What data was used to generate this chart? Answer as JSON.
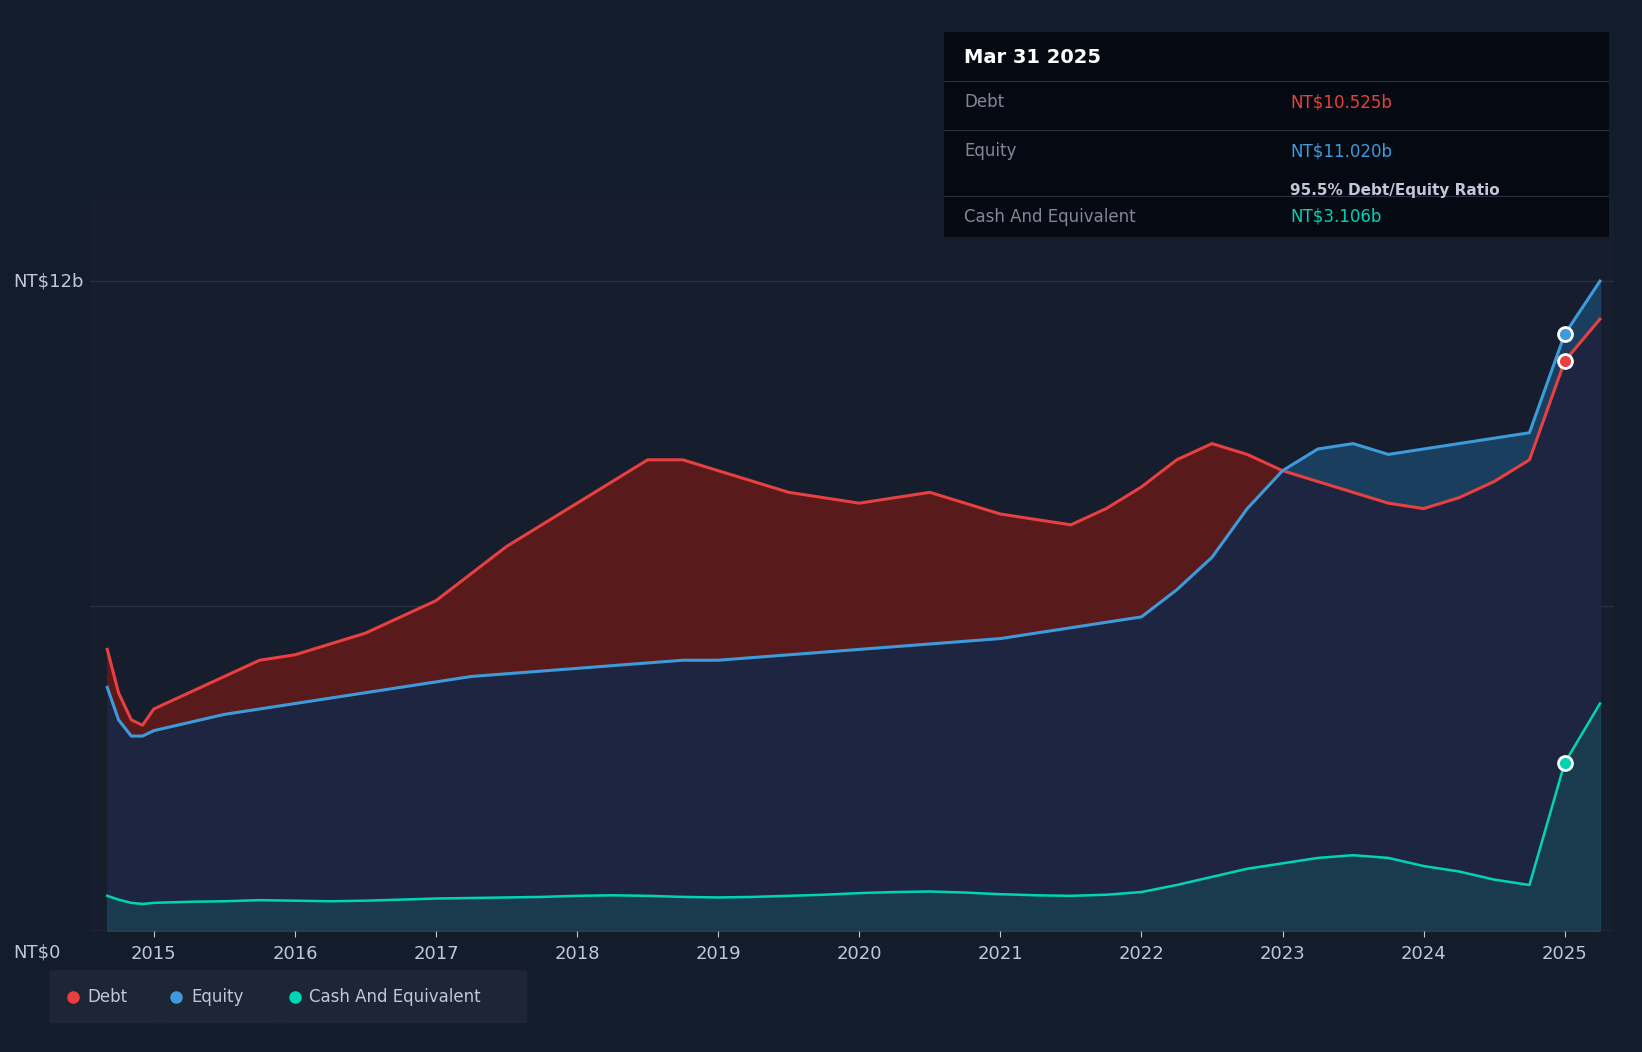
{
  "bg_color": "#131c2b",
  "plot_bg_color": "#161d2d",
  "grid_color": "#2a3347",
  "debt_color": "#e84040",
  "equity_color": "#3d9bdc",
  "cash_color": "#00d4b4",
  "tooltip_date": "Mar 31 2025",
  "tooltip_debt_label": "Debt",
  "tooltip_debt_value": "NT$10.525b",
  "tooltip_equity_label": "Equity",
  "tooltip_equity_value": "NT$11.020b",
  "tooltip_ratio": "95.5% Debt/Equity Ratio",
  "tooltip_cash_label": "Cash And Equivalent",
  "tooltip_cash_value": "NT$3.106b",
  "ylabel_top": "NT$12b",
  "ylabel_bottom": "NT$0",
  "ylim": [
    0,
    13.5
  ],
  "ytick_12b": 12,
  "ytick_6b": 6,
  "xlim_start": 2014.55,
  "xlim_end": 2025.35,
  "xtick_labels": [
    "2015",
    "2016",
    "2017",
    "2018",
    "2019",
    "2020",
    "2021",
    "2022",
    "2023",
    "2024",
    "2025"
  ],
  "xtick_positions": [
    2015,
    2016,
    2017,
    2018,
    2019,
    2020,
    2021,
    2022,
    2023,
    2024,
    2025
  ],
  "legend_items": [
    "Debt",
    "Equity",
    "Cash And Equivalent"
  ],
  "legend_colors": [
    "#e84040",
    "#3d9bdc",
    "#00d4b4"
  ],
  "debt_data_x": [
    2014.67,
    2014.75,
    2014.84,
    2014.92,
    2015.0,
    2015.25,
    2015.5,
    2015.75,
    2016.0,
    2016.25,
    2016.5,
    2016.75,
    2017.0,
    2017.25,
    2017.5,
    2017.75,
    2018.0,
    2018.25,
    2018.5,
    2018.75,
    2019.0,
    2019.25,
    2019.5,
    2019.75,
    2020.0,
    2020.25,
    2020.5,
    2020.75,
    2021.0,
    2021.25,
    2021.5,
    2021.75,
    2022.0,
    2022.25,
    2022.5,
    2022.75,
    2023.0,
    2023.25,
    2023.5,
    2023.75,
    2024.0,
    2024.25,
    2024.5,
    2024.75,
    2025.0,
    2025.25
  ],
  "debt_data_y": [
    5.2,
    4.4,
    3.9,
    3.8,
    4.1,
    4.4,
    4.7,
    5.0,
    5.1,
    5.3,
    5.5,
    5.8,
    6.1,
    6.6,
    7.1,
    7.5,
    7.9,
    8.3,
    8.7,
    8.7,
    8.5,
    8.3,
    8.1,
    8.0,
    7.9,
    8.0,
    8.1,
    7.9,
    7.7,
    7.6,
    7.5,
    7.8,
    8.2,
    8.7,
    9.0,
    8.8,
    8.5,
    8.3,
    8.1,
    7.9,
    7.8,
    8.0,
    8.3,
    8.7,
    10.525,
    11.3
  ],
  "equity_data_x": [
    2014.67,
    2014.75,
    2014.84,
    2014.92,
    2015.0,
    2015.25,
    2015.5,
    2015.75,
    2016.0,
    2016.25,
    2016.5,
    2016.75,
    2017.0,
    2017.25,
    2017.5,
    2017.75,
    2018.0,
    2018.25,
    2018.5,
    2018.75,
    2019.0,
    2019.25,
    2019.5,
    2019.75,
    2020.0,
    2020.25,
    2020.5,
    2020.75,
    2021.0,
    2021.25,
    2021.5,
    2021.75,
    2022.0,
    2022.25,
    2022.5,
    2022.75,
    2023.0,
    2023.25,
    2023.5,
    2023.75,
    2024.0,
    2024.25,
    2024.5,
    2024.75,
    2025.0,
    2025.25
  ],
  "equity_data_y": [
    4.5,
    3.9,
    3.6,
    3.6,
    3.7,
    3.85,
    4.0,
    4.1,
    4.2,
    4.3,
    4.4,
    4.5,
    4.6,
    4.7,
    4.75,
    4.8,
    4.85,
    4.9,
    4.95,
    5.0,
    5.0,
    5.05,
    5.1,
    5.15,
    5.2,
    5.25,
    5.3,
    5.35,
    5.4,
    5.5,
    5.6,
    5.7,
    5.8,
    6.3,
    6.9,
    7.8,
    8.5,
    8.9,
    9.0,
    8.8,
    8.9,
    9.0,
    9.1,
    9.2,
    11.02,
    12.0
  ],
  "cash_data_x": [
    2014.67,
    2014.75,
    2014.84,
    2014.92,
    2015.0,
    2015.25,
    2015.5,
    2015.75,
    2016.0,
    2016.25,
    2016.5,
    2016.75,
    2017.0,
    2017.25,
    2017.5,
    2017.75,
    2018.0,
    2018.25,
    2018.5,
    2018.75,
    2019.0,
    2019.25,
    2019.5,
    2019.75,
    2020.0,
    2020.25,
    2020.5,
    2020.75,
    2021.0,
    2021.25,
    2021.5,
    2021.75,
    2022.0,
    2022.25,
    2022.5,
    2022.75,
    2023.0,
    2023.25,
    2023.5,
    2023.75,
    2024.0,
    2024.25,
    2024.5,
    2024.75,
    2025.0,
    2025.25
  ],
  "cash_data_y": [
    0.65,
    0.58,
    0.52,
    0.5,
    0.52,
    0.54,
    0.55,
    0.57,
    0.56,
    0.55,
    0.56,
    0.58,
    0.6,
    0.61,
    0.62,
    0.63,
    0.65,
    0.66,
    0.65,
    0.63,
    0.62,
    0.63,
    0.65,
    0.67,
    0.7,
    0.72,
    0.73,
    0.71,
    0.68,
    0.66,
    0.65,
    0.67,
    0.72,
    0.85,
    1.0,
    1.15,
    1.25,
    1.35,
    1.4,
    1.35,
    1.2,
    1.1,
    0.95,
    0.85,
    3.106,
    4.2
  ]
}
